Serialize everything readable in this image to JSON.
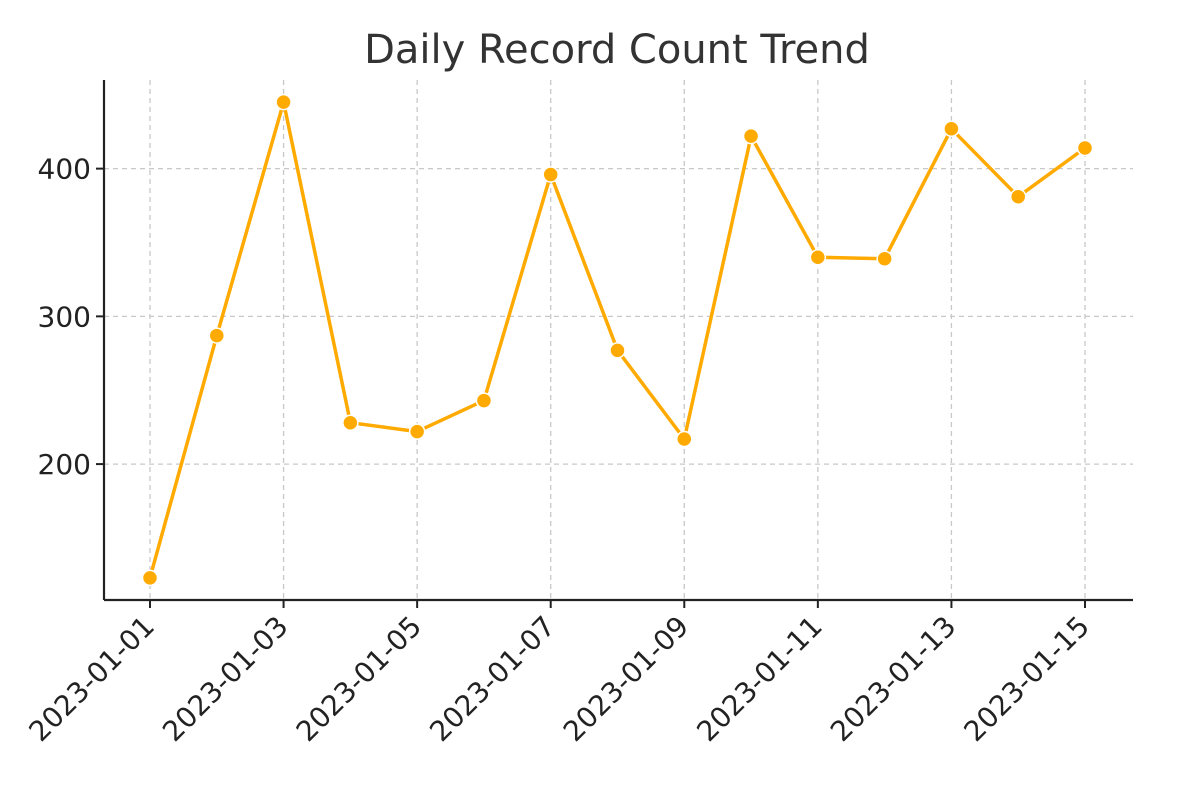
{
  "chart_data": {
    "type": "line",
    "title": "Daily Record Count Trend",
    "xlabel": "",
    "ylabel": "",
    "x": [
      "2023-01-01",
      "2023-01-02",
      "2023-01-03",
      "2023-01-04",
      "2023-01-05",
      "2023-01-06",
      "2023-01-07",
      "2023-01-08",
      "2023-01-09",
      "2023-01-10",
      "2023-01-11",
      "2023-01-12",
      "2023-01-13",
      "2023-01-14",
      "2023-01-15"
    ],
    "series": [
      {
        "values": [
          123,
          287,
          445,
          228,
          222,
          243,
          396,
          277,
          217,
          422,
          340,
          339,
          427,
          381,
          414
        ]
      }
    ],
    "x_tick_labels": [
      "2023-01-01",
      "2023-01-03",
      "2023-01-05",
      "2023-01-07",
      "2023-01-09",
      "2023-01-11",
      "2023-01-13",
      "2023-01-15"
    ],
    "y_ticks": [
      200,
      300,
      400
    ],
    "ylim": [
      108,
      460
    ],
    "grid": true,
    "legend": "none",
    "colors": {
      "line": "#FFAA00",
      "marker_edge": "#ffffff"
    }
  }
}
